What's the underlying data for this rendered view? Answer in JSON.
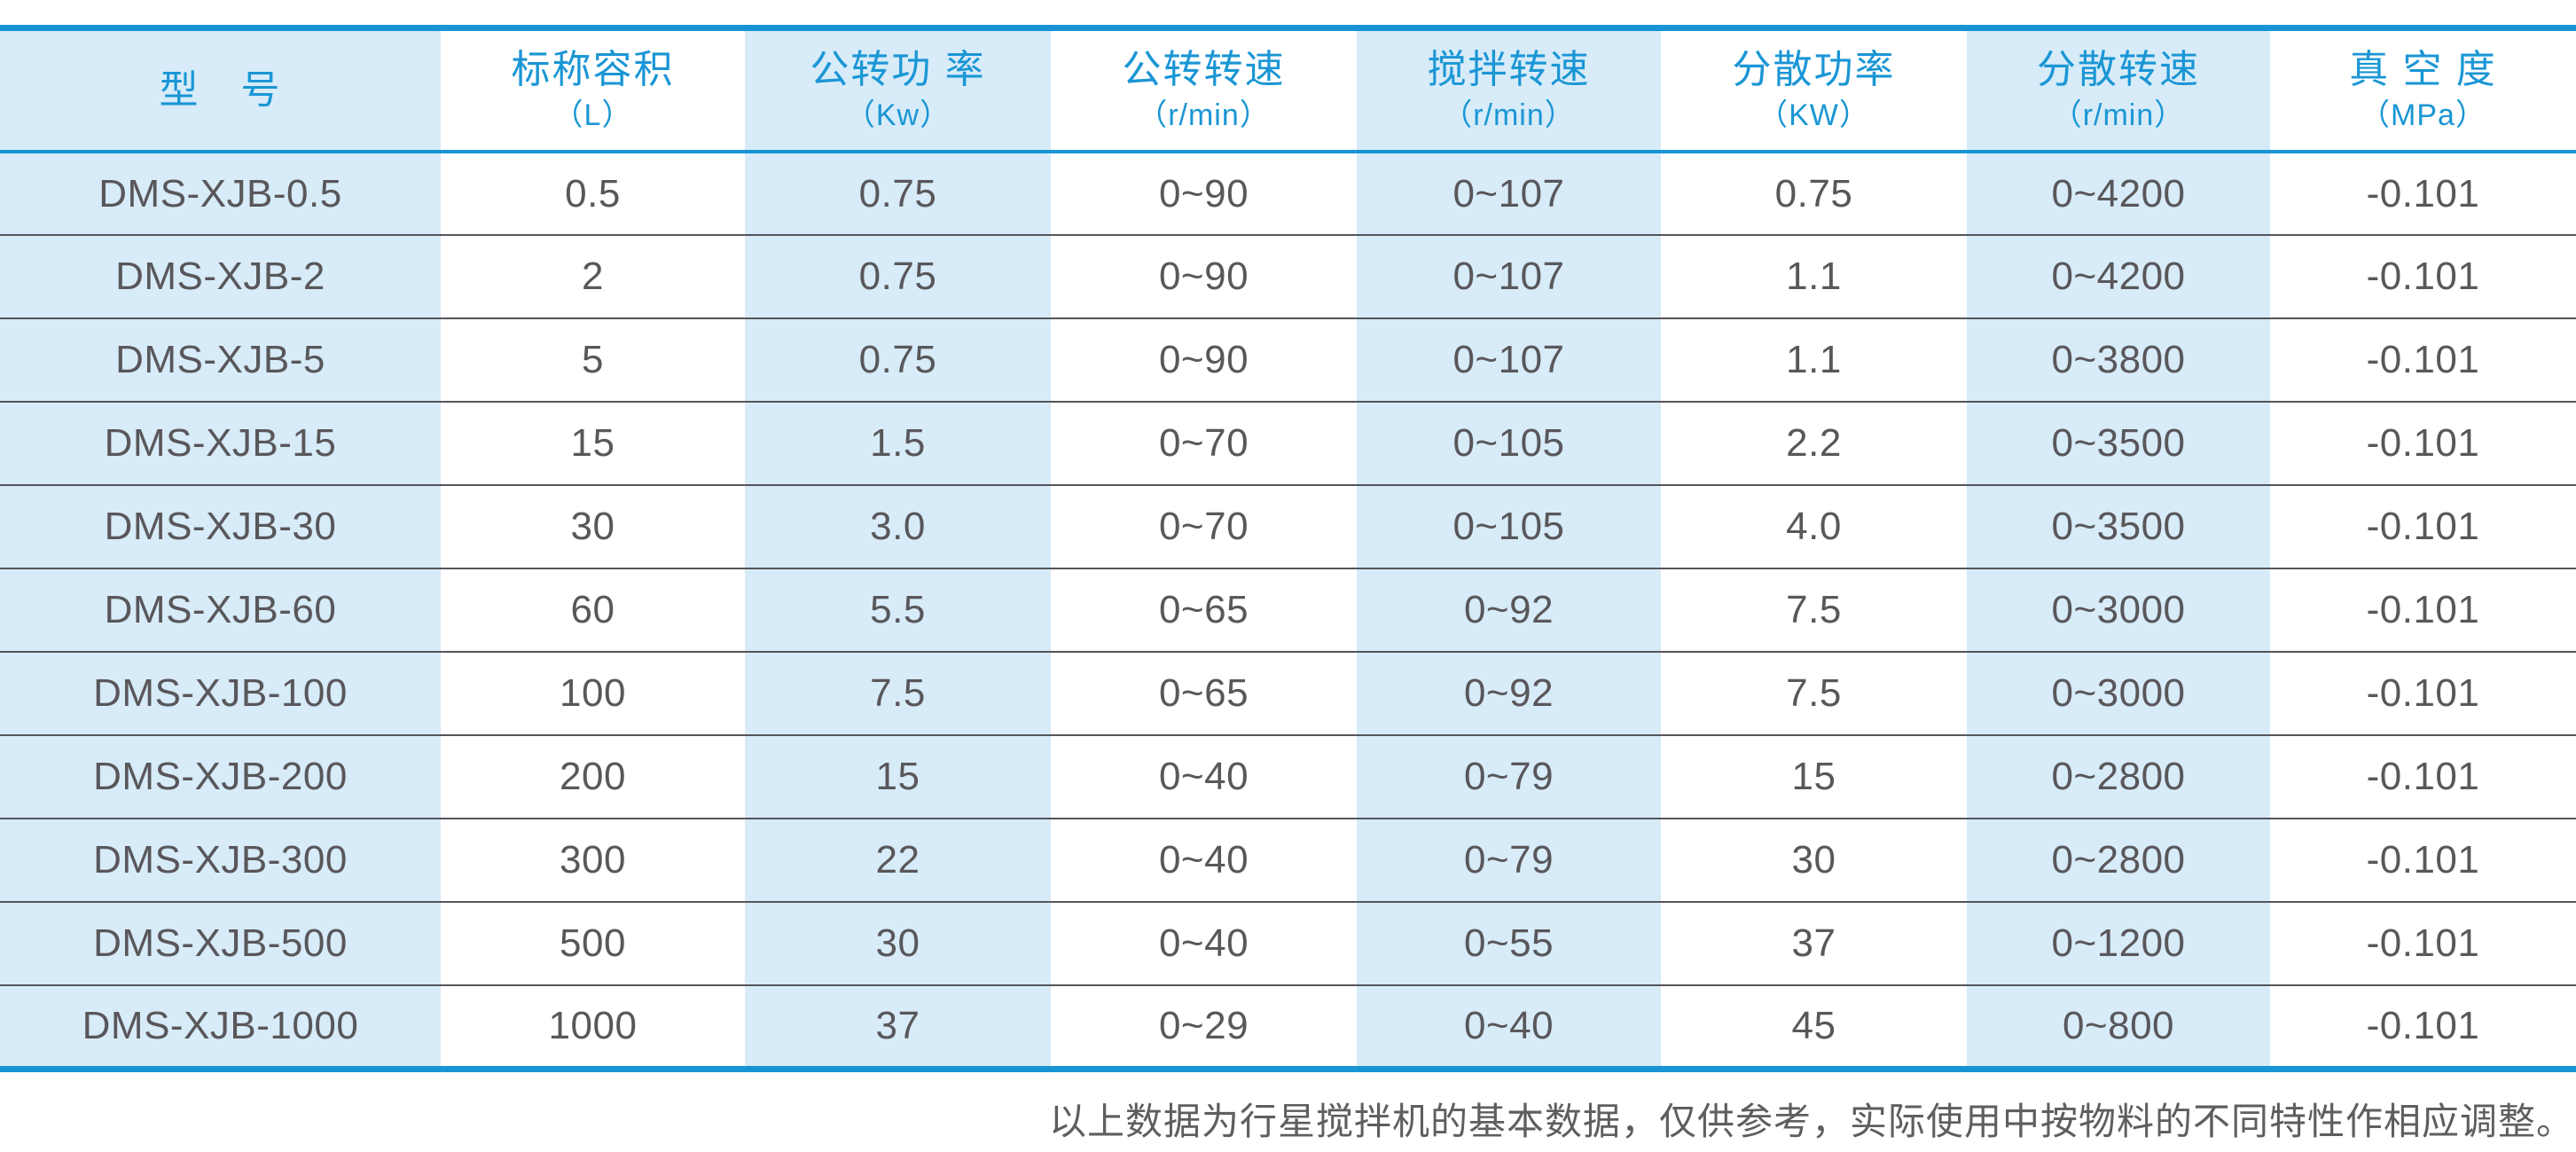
{
  "table": {
    "columns": [
      {
        "name": "型　号",
        "unit": ""
      },
      {
        "name": "标称容积",
        "unit": "（L）"
      },
      {
        "name": "公转功 率",
        "unit": "（Kw）"
      },
      {
        "name": "公转转速",
        "unit": "（r/min）"
      },
      {
        "name": "搅拌转速",
        "unit": "（r/min）"
      },
      {
        "name": "分散功率",
        "unit": "（KW）"
      },
      {
        "name": "分散转速",
        "unit": "（r/min）"
      },
      {
        "name": "真 空 度",
        "unit": "（MPa）"
      }
    ],
    "rows": [
      [
        "DMS-XJB-0.5",
        "0.5",
        "0.75",
        "0~90",
        "0~107",
        "0.75",
        "0~4200",
        "-0.101"
      ],
      [
        "DMS-XJB-2",
        "2",
        "0.75",
        "0~90",
        "0~107",
        "1.1",
        "0~4200",
        "-0.101"
      ],
      [
        "DMS-XJB-5",
        "5",
        "0.75",
        "0~90",
        "0~107",
        "1.1",
        "0~3800",
        "-0.101"
      ],
      [
        "DMS-XJB-15",
        "15",
        "1.5",
        "0~70",
        "0~105",
        "2.2",
        "0~3500",
        "-0.101"
      ],
      [
        "DMS-XJB-30",
        "30",
        "3.0",
        "0~70",
        "0~105",
        "4.0",
        "0~3500",
        "-0.101"
      ],
      [
        "DMS-XJB-60",
        "60",
        "5.5",
        "0~65",
        "0~92",
        "7.5",
        "0~3000",
        "-0.101"
      ],
      [
        "DMS-XJB-100",
        "100",
        "7.5",
        "0~65",
        "0~92",
        "7.5",
        "0~3000",
        "-0.101"
      ],
      [
        "DMS-XJB-200",
        "200",
        "15",
        "0~40",
        "0~79",
        "15",
        "0~2800",
        "-0.101"
      ],
      [
        "DMS-XJB-300",
        "300",
        "22",
        "0~40",
        "0~79",
        "30",
        "0~2800",
        "-0.101"
      ],
      [
        "DMS-XJB-500",
        "500",
        "30",
        "0~40",
        "0~55",
        "37",
        "0~1200",
        "-0.101"
      ],
      [
        "DMS-XJB-1000",
        "1000",
        "37",
        "0~29",
        "0~40",
        "45",
        "0~800",
        "-0.101"
      ]
    ]
  },
  "footer": {
    "note": "以上数据为行星搅拌机的基本数据，仅供参考，实际使用中按物料的不同特性作相应调整。"
  },
  "colors": {
    "accent_blue": "#1894d5",
    "header_text": "#1a96d5",
    "cell_shade": "#d7ebf8",
    "body_text": "#59575a",
    "row_separator": "#55555a",
    "footnote_text": "#5f5e5c"
  }
}
